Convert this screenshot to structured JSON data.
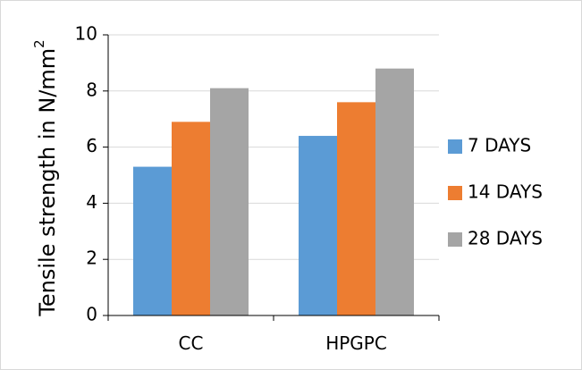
{
  "chart_data": {
    "type": "bar",
    "categories": [
      "CC",
      "HPGPC"
    ],
    "series": [
      {
        "name": "7 DAYS",
        "values": [
          5.3,
          6.4
        ],
        "color": "#5b9bd5"
      },
      {
        "name": "14 DAYS",
        "values": [
          6.9,
          7.6
        ],
        "color": "#ed7d31"
      },
      {
        "name": "28 DAYS",
        "values": [
          8.1,
          8.8
        ],
        "color": "#a5a5a5"
      }
    ],
    "title": "",
    "xlabel": "",
    "ylabel": "Tensile strength in N/mm",
    "ylabel_superscript": "2",
    "ylim": [
      0,
      10
    ],
    "yticks": [
      "0",
      "2",
      "4",
      "6",
      "8",
      "10"
    ],
    "grid": true,
    "legend_position": "right"
  }
}
